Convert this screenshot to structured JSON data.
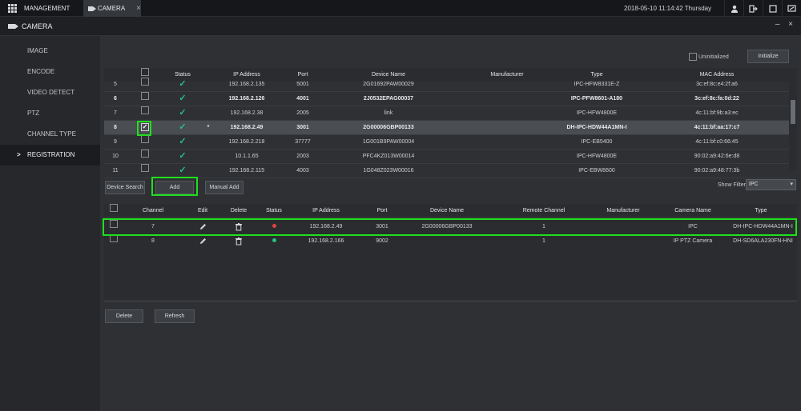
{
  "topbar": {
    "tabs": [
      {
        "label": "MANAGEMENT",
        "icon": "grid-icon"
      },
      {
        "label": "CAMERA",
        "icon": "camera-icon",
        "close": "×"
      }
    ],
    "datetime": "2018-05-10 11:14:42 Thursday",
    "icons": [
      "user-icon",
      "logout-icon",
      "monitor-icon",
      "screen-icon"
    ]
  },
  "subbar": {
    "title": "CAMERA",
    "controls": "– ×"
  },
  "sidebar": {
    "items": [
      {
        "label": "IMAGE"
      },
      {
        "label": "ENCODE"
      },
      {
        "label": "VIDEO DETECT"
      },
      {
        "label": "PTZ"
      },
      {
        "label": "CHANNEL TYPE"
      },
      {
        "label": "REGISTRATION",
        "active": true
      }
    ]
  },
  "top": {
    "uninitialized_label": "Uninitialized",
    "initialize_label": "Initialize"
  },
  "device_table": {
    "headers": [
      "Status",
      "IP Address",
      "Port",
      "Device Name",
      "Manufacturer",
      "Type",
      "MAC Address"
    ],
    "rows": [
      {
        "no": "5",
        "ip": "192.168.2.135",
        "port": "5001",
        "name": "2G01692PAW00029",
        "type": "IPC-HFW8331E-Z",
        "mac": "3c:ef:8c:e4:2f:a6",
        "checked": false,
        "bold": false,
        "mark": ""
      },
      {
        "no": "6",
        "ip": "192.168.2.126",
        "port": "4001",
        "name": "2J0532EPAG00037",
        "type": "IPC-PFW8601-A180",
        "mac": "3c:ef:8c:fa:0d:22",
        "checked": false,
        "bold": true,
        "mark": ""
      },
      {
        "no": "7",
        "ip": "192.168.2.38",
        "port": "2005",
        "name": "link",
        "type": "IPC-HFW4800E",
        "mac": "4c:11:bf:9b:a3:ec",
        "checked": false,
        "bold": false,
        "mark": ""
      },
      {
        "no": "8",
        "ip": "192.168.2.49",
        "port": "3001",
        "name": "2G00006GBP00133",
        "type": "DH-IPC-HDW44A1MN-I",
        "mac": "4c:11:bf:aa:17:c7",
        "checked": true,
        "bold": true,
        "mark": "*"
      },
      {
        "no": "9",
        "ip": "192.168.2.218",
        "port": "37777",
        "name": "1G001B9PAW00004",
        "type": "IPC-EB5400",
        "mac": "4c:11:bf:c0:66:45",
        "checked": false,
        "bold": false,
        "mark": ""
      },
      {
        "no": "10",
        "ip": "10.1.1.65",
        "port": "2003",
        "name": "PFC4KZ013W00014",
        "type": "IPC-HFW4800E",
        "mac": "90:02:a9:42:6e:d8",
        "checked": false,
        "bold": false,
        "mark": ""
      },
      {
        "no": "11",
        "ip": "192.168.2.115",
        "port": "4003",
        "name": "1G048Z023W00016",
        "type": "IPC-EBW8600",
        "mac": "90:02:a9:48:77:3b",
        "checked": false,
        "bold": false,
        "mark": ""
      }
    ]
  },
  "actions": {
    "device_search": "Device Search",
    "add": "Add",
    "manual_add": "Manual Add",
    "show_filter_label": "Show Filter",
    "show_filter_value": "IPC",
    "delete": "Delete",
    "refresh": "Refresh"
  },
  "added_table": {
    "headers": [
      "Channel",
      "Edit",
      "Delete",
      "Status",
      "IP Address",
      "Port",
      "Device Name",
      "Remote Channel",
      "Manufacturer",
      "Camera Name",
      "Type"
    ],
    "rows": [
      {
        "channel": "7",
        "status_color": "#e04343",
        "ip": "192.168.2.49",
        "port": "3001",
        "name": "2G00006GBP00133",
        "remote": "1",
        "manufacturer": "",
        "camera": "IPC",
        "type": "DH-IPC-HDW44A1MN-I"
      },
      {
        "channel": "8",
        "status_color": "#26c281",
        "ip": "192.168.2.166",
        "port": "9002",
        "name": "",
        "remote": "1",
        "manufacturer": "",
        "camera": "IP PTZ Camera",
        "type": "DH-SD6ALA230FN-HNI"
      }
    ]
  },
  "colors": {
    "highlight": "#1ee01e",
    "ok": "#26c281",
    "error": "#e04343"
  }
}
